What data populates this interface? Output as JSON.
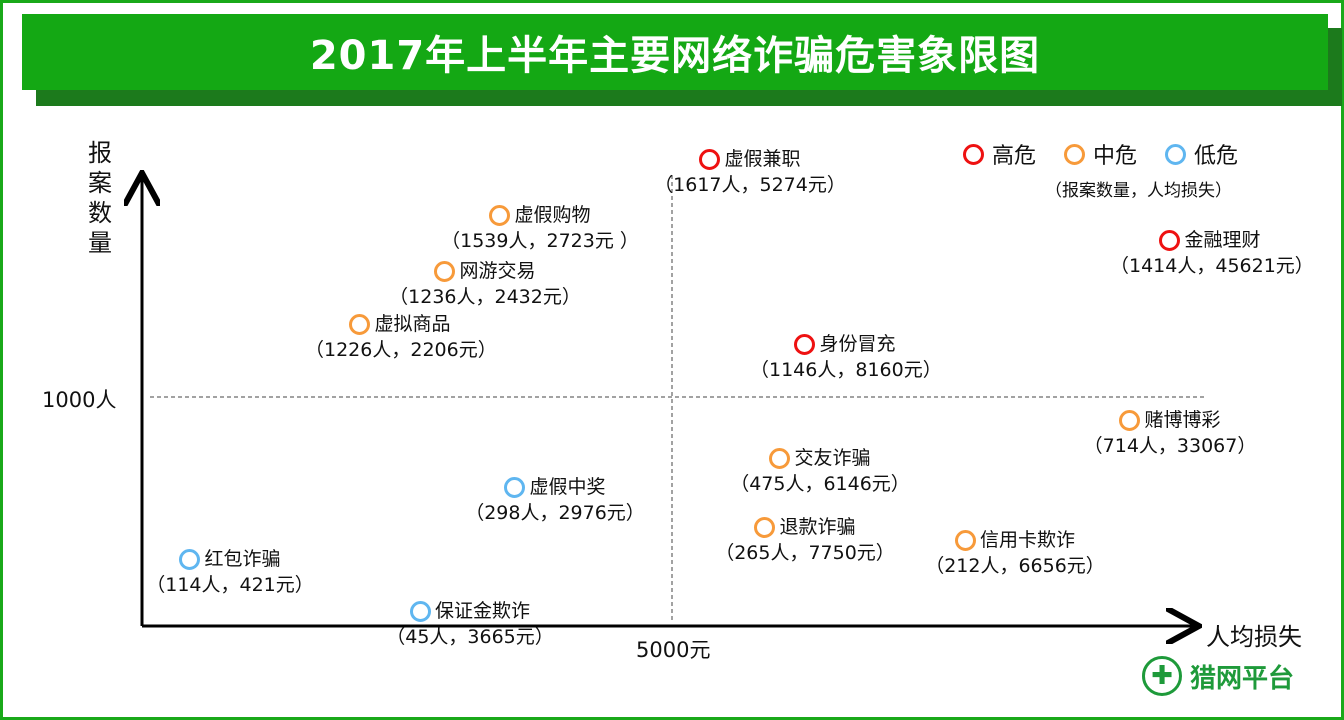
{
  "title": "2017年上半年主要网络诈骗危害象限图",
  "colors": {
    "high": "#ee1111",
    "mid": "#f79a3a",
    "low": "#5fb6f0",
    "brand_green": "#14a814"
  },
  "chart_data": {
    "type": "scatter",
    "title": "2017年上半年主要网络诈骗危害象限图",
    "ylabel": "报案数量",
    "xlabel": "人均损失",
    "y_threshold_label": "1000人",
    "x_threshold_label": "5000元",
    "y_threshold": 1000,
    "x_threshold": 5000,
    "legend": [
      {
        "level": "high",
        "label": "高危"
      },
      {
        "level": "mid",
        "label": "中危"
      },
      {
        "level": "low",
        "label": "低危"
      }
    ],
    "legend_note": "（报案数量，人均损失）",
    "legend_placement": "top-right",
    "points": [
      {
        "name": "虚假兼职",
        "cases": 1617,
        "loss": 5274,
        "level": "high",
        "label": "（1617人，5274元）"
      },
      {
        "name": "虚假购物",
        "cases": 1539,
        "loss": 2723,
        "level": "mid",
        "label": "（1539人，2723元 ）"
      },
      {
        "name": "网游交易",
        "cases": 1236,
        "loss": 2432,
        "level": "mid",
        "label": "（1236人，2432元）"
      },
      {
        "name": "虚拟商品",
        "cases": 1226,
        "loss": 2206,
        "level": "mid",
        "label": "（1226人，2206元）"
      },
      {
        "name": "身份冒充",
        "cases": 1146,
        "loss": 8160,
        "level": "high",
        "label": "（1146人，8160元）"
      },
      {
        "name": "金融理财",
        "cases": 1414,
        "loss": 45621,
        "level": "high",
        "label": "（1414人，45621元）"
      },
      {
        "name": "赌博博彩",
        "cases": 714,
        "loss": 33067,
        "level": "mid",
        "label": "（714人，33067）"
      },
      {
        "name": "交友诈骗",
        "cases": 475,
        "loss": 6146,
        "level": "mid",
        "label": "（475人，6146元）"
      },
      {
        "name": "虚假中奖",
        "cases": 298,
        "loss": 2976,
        "level": "low",
        "label": "（298人，2976元）"
      },
      {
        "name": "退款诈骗",
        "cases": 265,
        "loss": 7750,
        "level": "mid",
        "label": "（265人，7750元）"
      },
      {
        "name": "信用卡欺诈",
        "cases": 212,
        "loss": 6656,
        "level": "mid",
        "label": "（212人，6656元）"
      },
      {
        "name": "红包诈骗",
        "cases": 114,
        "loss": 421,
        "level": "low",
        "label": "（114人，421元）"
      },
      {
        "name": "保证金欺诈",
        "cases": 45,
        "loss": 3665,
        "level": "low",
        "label": "（45人，3665元）"
      }
    ]
  },
  "logo": {
    "text": "猎网平台"
  }
}
